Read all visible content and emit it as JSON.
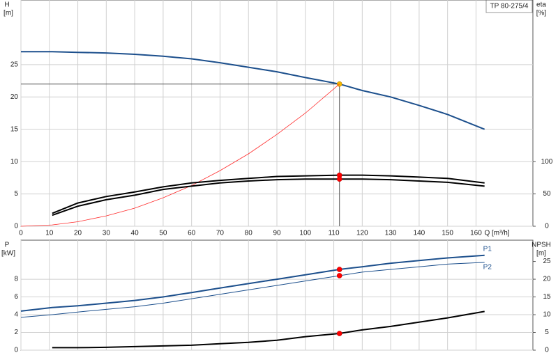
{
  "chart_data": [
    {
      "type": "line",
      "model": "TP 80-275/4",
      "ylabel": "H",
      "yunit": "[m]",
      "y2label": "eta",
      "y2unit": "[%]",
      "xlabel": "Q [m³/h]",
      "x": [
        0,
        11,
        20,
        30,
        40,
        50,
        60,
        70,
        80,
        90,
        100,
        112,
        120,
        130,
        140,
        150,
        163
      ],
      "xlim": [
        0,
        180
      ],
      "xticks": [
        0,
        10,
        20,
        30,
        40,
        50,
        60,
        70,
        80,
        90,
        100,
        110,
        120,
        130,
        140,
        150,
        160
      ],
      "ylim": [
        0,
        35
      ],
      "yticks": [
        0,
        5,
        10,
        15,
        20,
        25
      ],
      "y2lim": [
        0,
        350
      ],
      "y2ticks": [
        0,
        50,
        100
      ],
      "grid": true,
      "operating_point_x": 112,
      "series": [
        {
          "color": "#1c4f8c",
          "width": 2,
          "values": [
            27.0,
            27.0,
            26.9,
            26.8,
            26.6,
            26.3,
            25.9,
            25.3,
            24.6,
            23.9,
            23.0,
            22.0,
            21.0,
            20.0,
            18.7,
            17.3,
            15.0
          ],
          "point_color": "#f5b800"
        },
        {
          "color": "#ff2a2a",
          "width": 0.8,
          "values": [
            0,
            0.2,
            0.7,
            1.6,
            2.8,
            4.4,
            6.3,
            8.6,
            11.2,
            14.2,
            17.5,
            22.0,
            null,
            null,
            null,
            null,
            null
          ]
        },
        {
          "color": "#000000",
          "width": 2,
          "axis": "y2",
          "values": [
            null,
            20,
            36,
            46,
            53,
            61,
            67,
            71,
            74,
            77,
            78,
            79,
            79,
            78,
            76,
            74,
            67
          ],
          "point_color": "#ff0000"
        },
        {
          "color": "#000000",
          "width": 2,
          "axis": "y2",
          "values": [
            null,
            17,
            31,
            41,
            48,
            57,
            62,
            67,
            70,
            72,
            73,
            73,
            73,
            72,
            70,
            68,
            62
          ],
          "point_color": "#ff0000"
        }
      ]
    },
    {
      "type": "line",
      "ylabel": "P",
      "yunit": "[kW]",
      "y2label": "NPSH",
      "y2unit": "[m]",
      "x": [
        0,
        11,
        20,
        30,
        40,
        50,
        60,
        70,
        80,
        90,
        100,
        112,
        120,
        130,
        140,
        150,
        163
      ],
      "xlim": [
        0,
        180
      ],
      "xticks": [
        0,
        10,
        20,
        30,
        40,
        50,
        60,
        70,
        80,
        90,
        100,
        110,
        120,
        130,
        140,
        150,
        160
      ],
      "ylim": [
        0,
        12.4
      ],
      "yticks": [
        0,
        2,
        4,
        6,
        8
      ],
      "y2lim": [
        0,
        31
      ],
      "y2ticks": [
        0,
        5,
        10,
        15,
        20,
        25
      ],
      "grid": true,
      "operating_point_x": 112,
      "series": [
        {
          "name": "P1",
          "color": "#1c4f8c",
          "width": 2,
          "values": [
            4.4,
            4.8,
            5.0,
            5.3,
            5.6,
            6.0,
            6.5,
            7.0,
            7.5,
            8.0,
            8.5,
            9.1,
            9.4,
            9.8,
            10.1,
            10.4,
            10.7
          ],
          "point_color": "#ff0000"
        },
        {
          "name": "P2",
          "color": "#1c4f8c",
          "width": 1,
          "values": [
            3.7,
            4.0,
            4.3,
            4.6,
            4.9,
            5.3,
            5.8,
            6.3,
            6.8,
            7.3,
            7.8,
            8.4,
            8.8,
            9.1,
            9.4,
            9.7,
            9.9
          ],
          "point_color": "#ff0000"
        },
        {
          "color": "#000000",
          "width": 2,
          "axis": "y2",
          "values": [
            null,
            0.7,
            0.7,
            0.8,
            1.0,
            1.2,
            1.4,
            1.8,
            2.2,
            2.8,
            3.8,
            4.7,
            5.7,
            6.7,
            7.9,
            9.1,
            10.9
          ],
          "point_color": "#ff0000"
        }
      ]
    }
  ]
}
